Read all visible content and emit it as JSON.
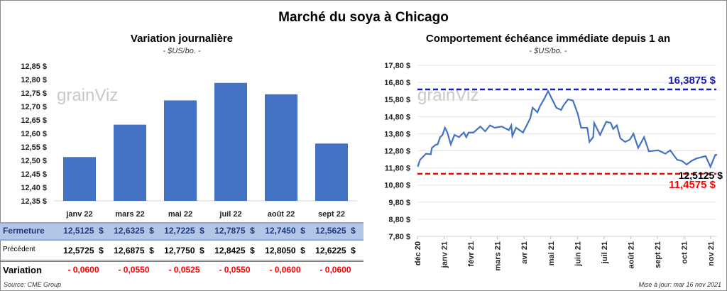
{
  "title": "Marché du soya à Chicago",
  "left": {
    "subtitle": "Variation journalière",
    "unit": "- $US/bo. -"
  },
  "right": {
    "subtitle": "Comportement  échéance immédiate depuis 1 an",
    "unit": "- $US/bo. -"
  },
  "watermark": "grainViz",
  "table": {
    "rows": [
      {
        "label": "Fermeture",
        "values": [
          "12,5125  $",
          "12,6325  $",
          "12,7225  $",
          "12,7875  $",
          "12,7450  $",
          "12,5625  $"
        ]
      },
      {
        "label": "Précédent",
        "values": [
          "12,5725  $",
          "12,6875  $",
          "12,7750  $",
          "12,8425  $",
          "12,8050  $",
          "12,6225  $"
        ]
      },
      {
        "label": "Variation",
        "values": [
          "- 0,0600",
          "- 0,0550",
          "- 0,0525",
          "- 0,0550",
          "- 0,0600",
          "- 0,0600"
        ]
      }
    ]
  },
  "source": "Source: CME Group",
  "updated": "Mise à jour: mar 16 nov 2021",
  "colors": {
    "bar": "#4472c4",
    "line": "#4472c4",
    "high": "#1a1ab0",
    "low": "#ff0000",
    "fermeture_bg": "#b4c6e7",
    "negative": "#ff0000"
  },
  "chart_data": [
    {
      "type": "bar",
      "title": "Variation journalière",
      "ylabel": "$US/bo.",
      "categories": [
        "janv 22",
        "mars 22",
        "mai 22",
        "juil 22",
        "août 22",
        "sept 22"
      ],
      "values": [
        12.5125,
        12.6325,
        12.7225,
        12.7875,
        12.745,
        12.5625
      ],
      "ylim": [
        12.35,
        12.85
      ],
      "yticks": [
        "12,35 $",
        "12,40 $",
        "12,45 $",
        "12,50 $",
        "12,55 $",
        "12,60 $",
        "12,65 $",
        "12,70 $",
        "12,75 $",
        "12,80 $",
        "12,85 $"
      ]
    },
    {
      "type": "line",
      "title": "Comportement  échéance immédiate depuis 1 an",
      "ylabel": "$US/bo.",
      "xticks": [
        "déc 20",
        "janv 21",
        "févr 21",
        "mars 21",
        "avr 21",
        "mai 21",
        "juin 21",
        "juil 21",
        "août 21",
        "sept 21",
        "oct 21",
        "nov 21"
      ],
      "yticks": [
        "7,80 $",
        "8,80 $",
        "9,80 $",
        "10,80 $",
        "11,80 $",
        "12,80 $",
        "13,80 $",
        "14,80 $",
        "15,80 $",
        "16,80 $",
        "17,80 $"
      ],
      "ylim": [
        7.8,
        17.8
      ],
      "grid": true,
      "x_unit": "months since déc 20",
      "points": [
        [
          0.01,
          11.87
        ],
        [
          0.1,
          12.28
        ],
        [
          0.32,
          12.63
        ],
        [
          0.5,
          12.6
        ],
        [
          0.54,
          12.97
        ],
        [
          0.68,
          13.15
        ],
        [
          0.76,
          13.18
        ],
        [
          0.85,
          13.6
        ],
        [
          0.94,
          13.73
        ],
        [
          1.03,
          14.15
        ],
        [
          1.12,
          13.87
        ],
        [
          1.25,
          13.18
        ],
        [
          1.39,
          13.73
        ],
        [
          1.56,
          13.6
        ],
        [
          1.74,
          13.87
        ],
        [
          1.83,
          13.6
        ],
        [
          1.92,
          13.87
        ],
        [
          2.1,
          13.87
        ],
        [
          2.36,
          14.22
        ],
        [
          2.54,
          13.94
        ],
        [
          2.72,
          14.29
        ],
        [
          2.9,
          14.15
        ],
        [
          3.16,
          14.22
        ],
        [
          3.43,
          14.01
        ],
        [
          3.52,
          14.29
        ],
        [
          3.56,
          13.66
        ],
        [
          3.7,
          14.15
        ],
        [
          3.96,
          13.87
        ],
        [
          4.23,
          14.7
        ],
        [
          4.32,
          15.32
        ],
        [
          4.41,
          15.19
        ],
        [
          4.5,
          15.05
        ],
        [
          4.59,
          15.39
        ],
        [
          4.77,
          15.88
        ],
        [
          4.9,
          16.29
        ],
        [
          5.03,
          15.88
        ],
        [
          5.21,
          15.32
        ],
        [
          5.39,
          15.19
        ],
        [
          5.48,
          15.46
        ],
        [
          5.65,
          15.81
        ],
        [
          5.83,
          15.74
        ],
        [
          6.01,
          14.98
        ],
        [
          6.14,
          14.15
        ],
        [
          6.37,
          14.15
        ],
        [
          6.45,
          13.32
        ],
        [
          6.59,
          13.6
        ],
        [
          6.63,
          14.43
        ],
        [
          6.85,
          13.73
        ],
        [
          7.08,
          14.5
        ],
        [
          7.25,
          14.43
        ],
        [
          7.34,
          14.08
        ],
        [
          7.48,
          14.29
        ],
        [
          7.61,
          13.53
        ],
        [
          7.79,
          13.32
        ],
        [
          7.97,
          13.46
        ],
        [
          8.1,
          13.8
        ],
        [
          8.28,
          12.97
        ],
        [
          8.5,
          13.6
        ],
        [
          8.68,
          12.77
        ],
        [
          9.03,
          12.83
        ],
        [
          9.3,
          12.63
        ],
        [
          9.48,
          12.83
        ],
        [
          9.74,
          12.28
        ],
        [
          9.92,
          12.21
        ],
        [
          10.1,
          12.0
        ],
        [
          10.28,
          12.21
        ],
        [
          10.46,
          12.35
        ],
        [
          10.81,
          12.49
        ],
        [
          10.99,
          11.87
        ],
        [
          11.17,
          12.56
        ],
        [
          11.24,
          12.56
        ]
      ],
      "high": {
        "value": 16.3875,
        "label": "16,3875  $"
      },
      "low": {
        "value": 11.4575,
        "label": "11,4575  $"
      },
      "last": {
        "value": 12.5125,
        "label": "12,5125 $"
      }
    }
  ]
}
